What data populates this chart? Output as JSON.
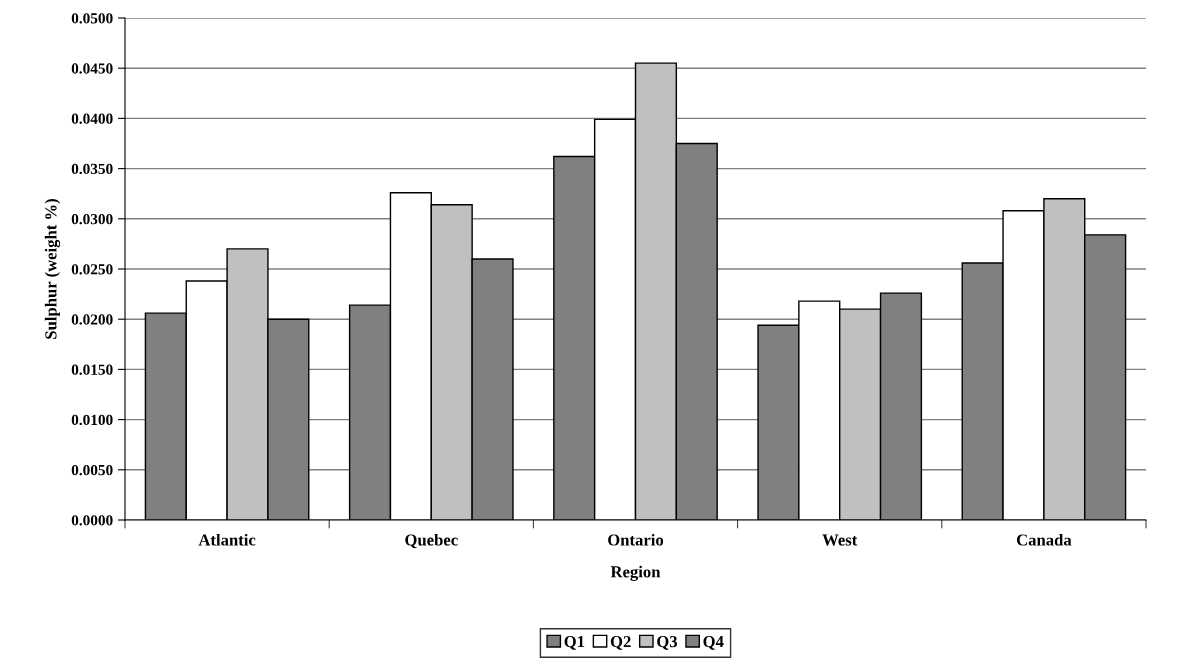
{
  "chart_data": {
    "type": "bar",
    "xlabel": "Region",
    "ylabel": "Sulphur (weight %)",
    "categories": [
      "Atlantic",
      "Quebec",
      "Ontario",
      "West",
      "Canada"
    ],
    "series": [
      {
        "name": "Q1",
        "color": "#808080",
        "values": [
          0.0206,
          0.0214,
          0.0362,
          0.0194,
          0.0256
        ]
      },
      {
        "name": "Q2",
        "color": "#ffffff",
        "values": [
          0.0238,
          0.0326,
          0.0399,
          0.0218,
          0.0308
        ]
      },
      {
        "name": "Q3",
        "color": "#c0c0c0",
        "values": [
          0.027,
          0.0314,
          0.0455,
          0.021,
          0.032
        ]
      },
      {
        "name": "Q4",
        "color": "#808080",
        "values": [
          0.02,
          0.026,
          0.0375,
          0.0226,
          0.0284
        ]
      }
    ],
    "ylim": [
      0,
      0.05
    ],
    "yticks": [
      {
        "value": 0,
        "label": "0.0000"
      },
      {
        "value": 0.005,
        "label": "0.0050"
      },
      {
        "value": 0.01,
        "label": "0.0100"
      },
      {
        "value": 0.015,
        "label": "0.0150"
      },
      {
        "value": 0.02,
        "label": "0.0200"
      },
      {
        "value": 0.025,
        "label": "0.0250"
      },
      {
        "value": 0.03,
        "label": "0.0300"
      },
      {
        "value": 0.035,
        "label": "0.0350"
      },
      {
        "value": 0.04,
        "label": "0.0400"
      },
      {
        "value": 0.045,
        "label": "0.0450"
      },
      {
        "value": 0.05,
        "label": "0.0500"
      }
    ],
    "grid": "y",
    "legend": "bottom"
  }
}
